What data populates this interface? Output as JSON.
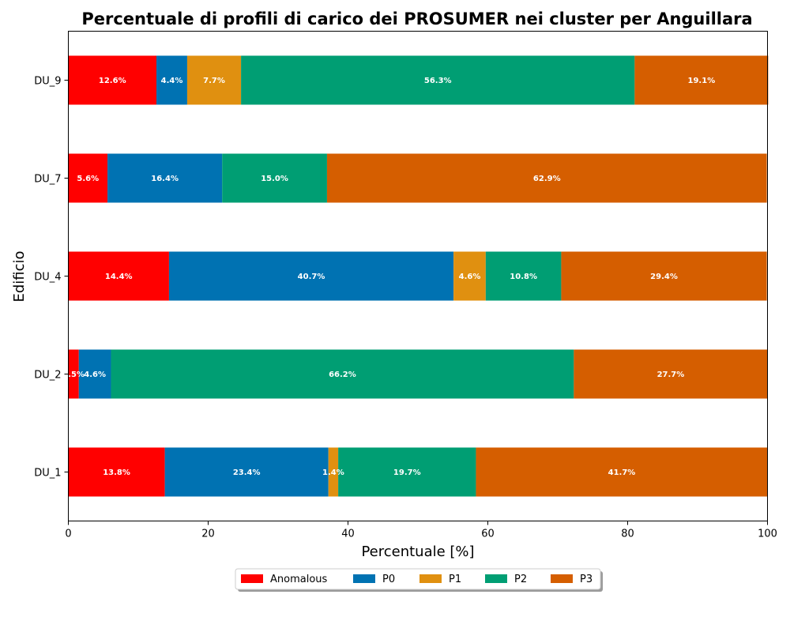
{
  "chart_data": {
    "type": "bar",
    "orientation": "horizontal",
    "stacked": true,
    "title": "Percentuale di profili di carico dei PROSUMER nei cluster per Anguillara",
    "xlabel": "Percentuale [%]",
    "ylabel": "Edificio",
    "xlim": [
      0,
      100
    ],
    "xticks": [
      0,
      20,
      40,
      60,
      80,
      100
    ],
    "grid": false,
    "legend_position": "bottom-center",
    "categories": [
      "DU_1",
      "DU_2",
      "DU_4",
      "DU_7",
      "DU_9"
    ],
    "series": [
      {
        "name": "Anomalous",
        "color": "#ff0000",
        "values": [
          13.8,
          1.5,
          14.4,
          5.6,
          12.6
        ],
        "labels": [
          "13.8%",
          "1.5%",
          "14.4%",
          "5.6%",
          "12.6%"
        ]
      },
      {
        "name": "P0",
        "color": "#0072b2",
        "values": [
          23.4,
          4.6,
          40.7,
          16.4,
          4.4
        ],
        "labels": [
          "23.4%",
          "4.6%",
          "40.7%",
          "16.4%",
          "4.4%"
        ]
      },
      {
        "name": "P1",
        "color": "#e09010",
        "values": [
          1.4,
          0,
          4.6,
          0,
          7.7
        ],
        "labels": [
          "1.4%",
          "",
          "4.6%",
          "",
          "7.7%"
        ]
      },
      {
        "name": "P2",
        "color": "#009e73",
        "values": [
          19.7,
          66.2,
          10.8,
          15.0,
          56.3
        ],
        "labels": [
          "19.7%",
          "66.2%",
          "10.8%",
          "15.0%",
          "56.3%"
        ]
      },
      {
        "name": "P3",
        "color": "#d55e00",
        "values": [
          41.7,
          27.7,
          29.4,
          62.9,
          19.1
        ],
        "labels": [
          "41.7%",
          "27.7%",
          "29.4%",
          "62.9%",
          "19.1%"
        ]
      }
    ]
  }
}
